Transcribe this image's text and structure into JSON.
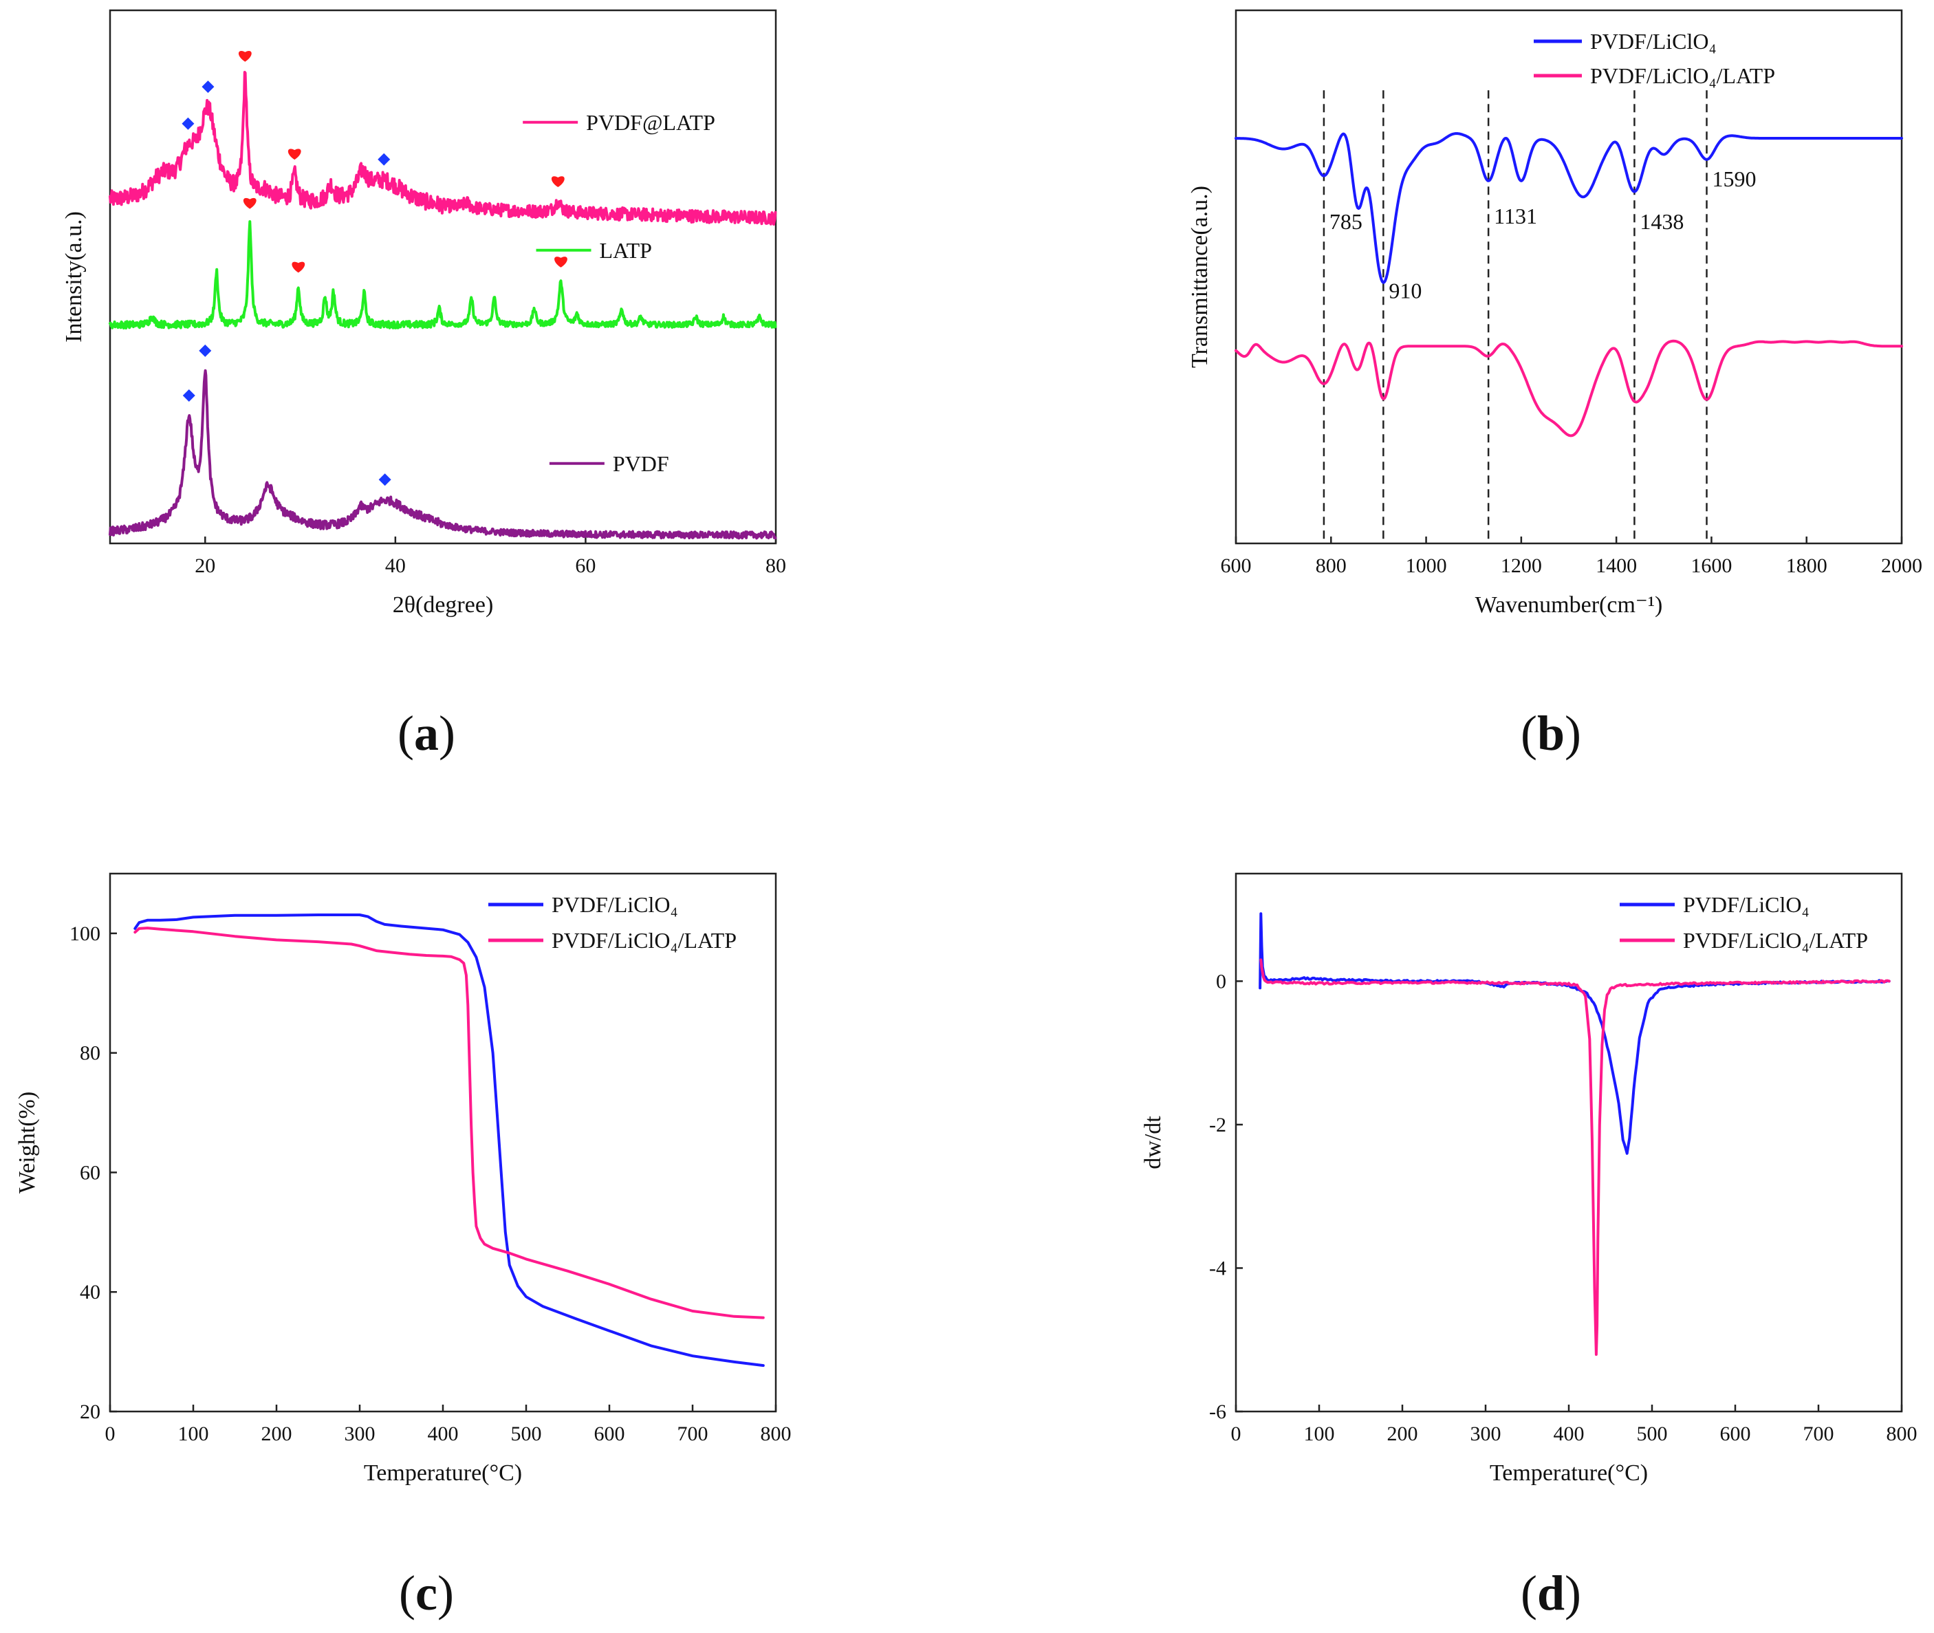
{
  "colors": {
    "pink": "#ff1a8c",
    "green": "#22ee22",
    "purple": "#8b1a8b",
    "blue": "#1a1aff",
    "red_marker": "#ff1a1a",
    "blue_marker": "#1a3aff"
  },
  "chart_data": [
    {
      "id": "a",
      "type": "line",
      "panel_label": "a",
      "xlabel": "2θ(degree)",
      "ylabel": "Intensity(a.u.)",
      "xlim": [
        10,
        80
      ],
      "ylim": [
        0,
        1
      ],
      "xticks": [
        20,
        40,
        60,
        80
      ],
      "show_yticks": false,
      "legend_style": "inline",
      "markers": {
        "diamond": "PVDF",
        "heart": "LATP"
      },
      "series": [
        {
          "name": "PVDF@LATP",
          "color": "#ff1a8c",
          "baseline": 0.64,
          "noise": 0.012,
          "slope": -0.03,
          "peaks": [
            [
              14.8,
              0.02,
              1.2
            ],
            [
              15.8,
              0.025,
              1.0
            ],
            [
              18.2,
              0.07,
              1.2
            ],
            [
              20.3,
              0.16,
              1.1
            ],
            [
              24.2,
              0.22,
              0.25
            ],
            [
              26.2,
              0.02,
              1.2
            ],
            [
              29.4,
              0.05,
              0.3
            ],
            [
              33.2,
              0.03,
              0.4
            ],
            [
              36.5,
              0.04,
              0.6
            ],
            [
              38.8,
              0.05,
              2.8
            ],
            [
              47.5,
              0.01,
              0.4
            ],
            [
              57.1,
              0.02,
              0.4
            ]
          ],
          "label_at": [
            0.62,
            0.79
          ],
          "markers": [
            {
              "shape": "diamond",
              "x": 18.2
            },
            {
              "shape": "diamond",
              "x": 20.3
            },
            {
              "shape": "heart",
              "x": 24.2
            },
            {
              "shape": "heart",
              "x": 29.4
            },
            {
              "shape": "diamond",
              "x": 38.8
            },
            {
              "shape": "heart",
              "x": 57.1
            }
          ]
        },
        {
          "name": "LATP",
          "color": "#22ee22",
          "baseline": 0.41,
          "noise": 0.005,
          "slope": 0,
          "peaks": [
            [
              14.4,
              0.015,
              0.3
            ],
            [
              21.2,
              0.1,
              0.2
            ],
            [
              24.7,
              0.19,
              0.2
            ],
            [
              29.8,
              0.07,
              0.2
            ],
            [
              32.6,
              0.05,
              0.2
            ],
            [
              33.5,
              0.06,
              0.2
            ],
            [
              36.7,
              0.06,
              0.2
            ],
            [
              44.6,
              0.03,
              0.2
            ],
            [
              48.0,
              0.05,
              0.2
            ],
            [
              50.4,
              0.05,
              0.2
            ],
            [
              54.6,
              0.03,
              0.2
            ],
            [
              57.4,
              0.08,
              0.25
            ],
            [
              59.1,
              0.02,
              0.2
            ],
            [
              63.8,
              0.03,
              0.2
            ],
            [
              65.8,
              0.015,
              0.2
            ],
            [
              71.6,
              0.015,
              0.2
            ],
            [
              74.5,
              0.015,
              0.2
            ],
            [
              78.3,
              0.015,
              0.2
            ]
          ],
          "label_at": [
            0.64,
            0.55
          ],
          "markers": [
            {
              "shape": "heart",
              "x": 24.7
            },
            {
              "shape": "heart",
              "x": 29.8
            },
            {
              "shape": "heart",
              "x": 57.4
            }
          ]
        },
        {
          "name": "PVDF",
          "color": "#8b1a8b",
          "baseline": 0.015,
          "noise": 0.006,
          "slope": 0,
          "peaks": [
            [
              18.3,
              0.18,
              0.55
            ],
            [
              20.0,
              0.26,
              0.35
            ],
            [
              26.6,
              0.07,
              0.9
            ],
            [
              28.5,
              0.02,
              2.5
            ],
            [
              36.3,
              0.02,
              0.5
            ],
            [
              38.9,
              0.05,
              2.5
            ],
            [
              42.0,
              0.02,
              4
            ],
            [
              18.5,
              0.03,
              4
            ]
          ],
          "label_at": [
            0.66,
            0.15
          ],
          "markers": [
            {
              "shape": "diamond",
              "x": 18.3
            },
            {
              "shape": "diamond",
              "x": 20.0
            },
            {
              "shape": "diamond",
              "x": 38.9
            }
          ]
        }
      ]
    },
    {
      "id": "b",
      "type": "line",
      "panel_label": "b",
      "xlabel": "Wavenumber(cm⁻¹)",
      "ylabel": "Transmittance(a.u.)",
      "xlim": [
        600,
        2000
      ],
      "ylim": [
        0,
        1
      ],
      "xticks": [
        600,
        800,
        1000,
        1200,
        1400,
        1600,
        1800,
        2000
      ],
      "show_yticks": false,
      "legend_style": "box",
      "vlines": [
        785,
        910,
        1131,
        1438,
        1590
      ],
      "annotations": [
        {
          "text": "785",
          "x": 785,
          "y": 0.59
        },
        {
          "text": "910",
          "x": 910,
          "y": 0.46
        },
        {
          "text": "1131",
          "x": 1131,
          "y": 0.6
        },
        {
          "text": "1438",
          "x": 1438,
          "y": 0.59
        },
        {
          "text": "1590",
          "x": 1590,
          "y": 0.67
        }
      ],
      "series": [
        {
          "name": "PVDF/LiClO₄",
          "color": "#1a1aff",
          "baseline": 0.76,
          "dips": [
            [
              700,
              0.02,
              30
            ],
            [
              785,
              0.07,
              18
            ],
            [
              856,
              0.12,
              12
            ],
            [
              910,
              0.27,
              22
            ],
            [
              965,
              0.04,
              20
            ],
            [
              1020,
              0.01,
              20
            ],
            [
              1131,
              0.08,
              15
            ],
            [
              1200,
              0.08,
              14
            ],
            [
              1330,
              0.11,
              30
            ],
            [
              1438,
              0.1,
              18
            ],
            [
              1500,
              0.03,
              15
            ],
            [
              1590,
              0.04,
              16
            ]
          ],
          "bumps": [
            [
              830,
              0.02,
              12
            ],
            [
              880,
              0.02,
              10
            ],
            [
              1060,
              0.01,
              20
            ],
            [
              1170,
              0.01,
              10
            ],
            [
              1400,
              0.01,
              10
            ],
            [
              1640,
              0.005,
              20
            ]
          ]
        },
        {
          "name": "PVDF/LiClO₄/LATP",
          "color": "#ff1a8c",
          "baseline": 0.37,
          "dips": [
            [
              620,
              0.02,
              15
            ],
            [
              700,
              0.03,
              30
            ],
            [
              785,
              0.07,
              20
            ],
            [
              856,
              0.05,
              15
            ],
            [
              910,
              0.1,
              14
            ],
            [
              1131,
              0.02,
              15
            ],
            [
              1240,
              0.1,
              30
            ],
            [
              1310,
              0.16,
              35
            ],
            [
              1438,
              0.1,
              20
            ],
            [
              1470,
              0.04,
              15
            ],
            [
              1590,
              0.1,
              20
            ]
          ],
          "bumps": [
            [
              640,
              0.015,
              10
            ],
            [
              830,
              0.02,
              12
            ],
            [
              880,
              0.03,
              12
            ],
            [
              1160,
              0.01,
              15
            ],
            [
              1400,
              0.015,
              15
            ],
            [
              1520,
              0.01,
              20
            ],
            [
              1700,
              0.008,
              20
            ],
            [
              1750,
              0.008,
              20
            ],
            [
              1800,
              0.008,
              20
            ],
            [
              1850,
              0.008,
              20
            ],
            [
              1900,
              0.008,
              20
            ]
          ]
        }
      ]
    },
    {
      "id": "c",
      "type": "line",
      "panel_label": "c",
      "xlabel": "Temperature(°C)",
      "ylabel": "Weight(%)",
      "xlim": [
        0,
        800
      ],
      "ylim": [
        20,
        110
      ],
      "xticks": [
        0,
        100,
        200,
        300,
        400,
        500,
        600,
        700,
        800
      ],
      "yticks": [
        20,
        40,
        60,
        80,
        100
      ],
      "legend_style": "box",
      "series": [
        {
          "name": "PVDF/LiClO₄",
          "color": "#1a1aff",
          "x": [
            30,
            35,
            45,
            60,
            80,
            100,
            150,
            200,
            250,
            300,
            310,
            320,
            330,
            350,
            400,
            420,
            430,
            440,
            450,
            460,
            465,
            470,
            475,
            480,
            490,
            500,
            520,
            560,
            600,
            650,
            700,
            750,
            785
          ],
          "y": [
            100.8,
            101.8,
            102.2,
            102.2,
            102.3,
            102.7,
            103.0,
            103.0,
            103.1,
            103.1,
            102.8,
            102.0,
            101.5,
            101.2,
            100.6,
            99.8,
            98.5,
            96,
            91,
            80,
            70,
            60,
            50,
            44.5,
            41,
            39.2,
            37.6,
            35.5,
            33.5,
            31,
            29.3,
            28.3,
            27.7
          ]
        },
        {
          "name": "PVDF/LiClO₄/LATP",
          "color": "#ff1a8c",
          "x": [
            30,
            35,
            45,
            60,
            100,
            150,
            200,
            250,
            290,
            300,
            320,
            340,
            360,
            380,
            400,
            410,
            420,
            425,
            428,
            430,
            432,
            434,
            436,
            438,
            440,
            445,
            450,
            460,
            480,
            500,
            550,
            600,
            650,
            700,
            750,
            785
          ],
          "y": [
            100.2,
            100.8,
            100.9,
            100.7,
            100.3,
            99.5,
            98.9,
            98.6,
            98.2,
            97.9,
            97.1,
            96.8,
            96.5,
            96.3,
            96.2,
            96.1,
            95.6,
            95,
            93,
            88,
            78,
            68,
            60,
            55,
            51,
            49,
            48,
            47.3,
            46.5,
            45.5,
            43.5,
            41.3,
            38.8,
            36.8,
            35.9,
            35.7
          ]
        }
      ]
    },
    {
      "id": "d",
      "type": "line",
      "panel_label": "d",
      "xlabel": "Temperature(°C)",
      "ylabel": "dw/dt",
      "xlim": [
        0,
        800
      ],
      "ylim": [
        -6,
        1.5
      ],
      "xticks": [
        0,
        100,
        200,
        300,
        400,
        500,
        600,
        700,
        800
      ],
      "yticks": [
        -6,
        -4,
        -2,
        0
      ],
      "legend_style": "box",
      "series": [
        {
          "name": "PVDF/LiClO₄",
          "color": "#1a1aff",
          "x": [
            29,
            30,
            31,
            32,
            34,
            37,
            40,
            50,
            80,
            120,
            200,
            290,
            310,
            320,
            330,
            360,
            400,
            420,
            430,
            440,
            450,
            460,
            465,
            470,
            473,
            478,
            485,
            495,
            510,
            560,
            650,
            785
          ],
          "y": [
            -0.1,
            0.95,
            0.5,
            0.2,
            0.08,
            0.03,
            0.01,
            0.01,
            0.04,
            0.02,
            0.0,
            0.0,
            -0.05,
            -0.08,
            -0.03,
            -0.02,
            -0.06,
            -0.15,
            -0.3,
            -0.6,
            -1.1,
            -1.7,
            -2.2,
            -2.4,
            -2.2,
            -1.5,
            -0.8,
            -0.3,
            -0.1,
            -0.05,
            -0.02,
            0.0
          ]
        },
        {
          "name": "PVDF/LiClO₄/LATP",
          "color": "#ff1a8c",
          "x": [
            30,
            31,
            33,
            36,
            40,
            60,
            100,
            200,
            300,
            400,
            410,
            420,
            425,
            428,
            431,
            433,
            434,
            435,
            437,
            440,
            443,
            446,
            450,
            460,
            480,
            550,
            650,
            785
          ],
          "y": [
            0.3,
            0.2,
            0.05,
            -0.01,
            -0.02,
            -0.02,
            -0.03,
            -0.02,
            -0.02,
            -0.04,
            -0.06,
            -0.2,
            -0.8,
            -2.2,
            -4.3,
            -5.2,
            -4.8,
            -3.6,
            -2.0,
            -0.9,
            -0.4,
            -0.2,
            -0.1,
            -0.06,
            -0.05,
            -0.03,
            -0.02,
            0.0
          ]
        }
      ]
    }
  ]
}
